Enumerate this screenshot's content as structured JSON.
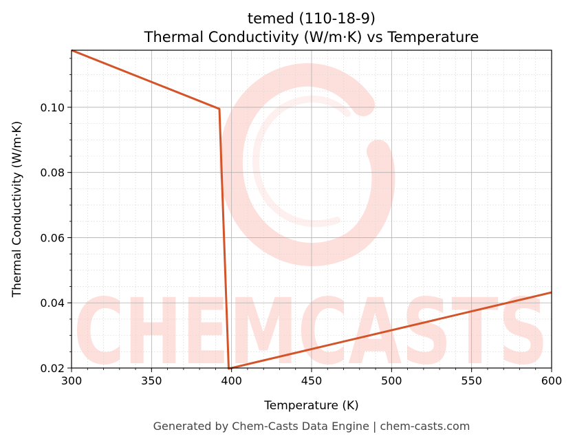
{
  "chart_data": {
    "type": "line",
    "title": "temed (110-18-9)",
    "subtitle": "Thermal Conductivity (W/m·K) vs Temperature",
    "xlabel": "Temperature (K)",
    "ylabel": "Thermal Conductivity (W/m·K)",
    "xlim": [
      300,
      600
    ],
    "ylim": [
      0.02,
      0.1175
    ],
    "xticks": [
      "300",
      "350",
      "400",
      "450",
      "500",
      "550",
      "600"
    ],
    "yticks": [
      "0.02",
      "0.04",
      "0.06",
      "0.08",
      "0.10"
    ],
    "grid": true,
    "series": [
      {
        "color": "#d4542a",
        "x": [
          300,
          392.4,
          398.2,
          600
        ],
        "y": [
          0.1175,
          0.0995,
          0.0198,
          0.0432
        ]
      }
    ]
  },
  "watermark": {
    "text": "CHEMCASTS",
    "color": "#fde0dc"
  },
  "footer": "Generated by Chem-Casts Data Engine | chem-casts.com"
}
